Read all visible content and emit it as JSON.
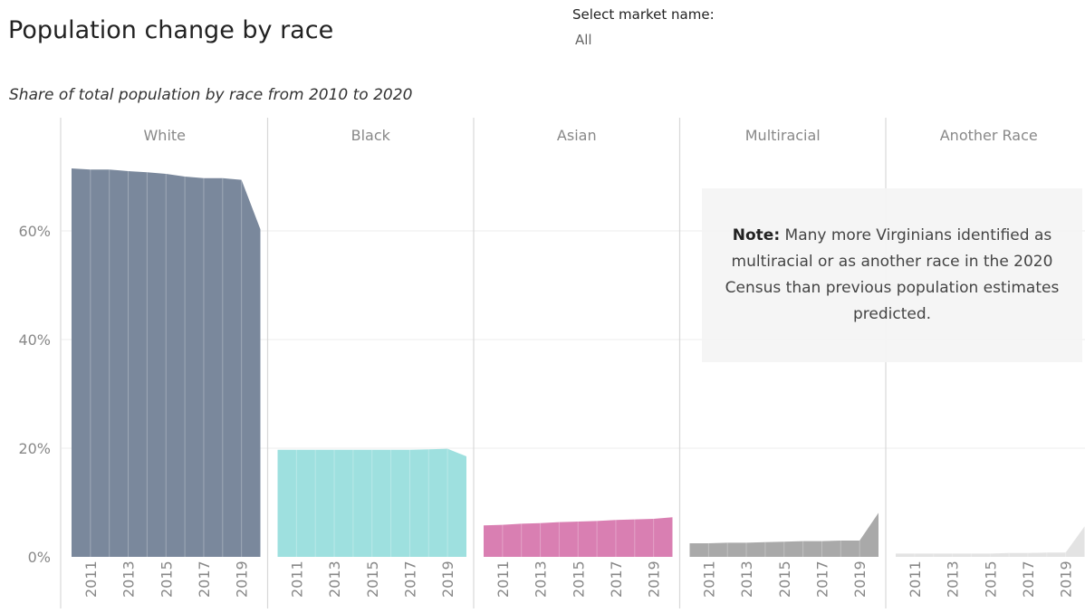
{
  "header": {
    "title": "Population change by race",
    "filter_label": "Select market name:",
    "filter_value": "All"
  },
  "note": {
    "label": "Note:",
    "text": "Many more Virginians identified as multiracial or as another race in the 2020 Census than previous population estimates predicted."
  },
  "chart_data": {
    "type": "area",
    "title": "Share of total population by race from 2010 to 2020",
    "x": [
      2010,
      2011,
      2012,
      2013,
      2014,
      2015,
      2016,
      2017,
      2018,
      2019,
      2020
    ],
    "x_tick_labels": [
      "2011",
      "2013",
      "2015",
      "2017",
      "2019"
    ],
    "y_tick_labels": [
      "0%",
      "20%",
      "40%",
      "60%"
    ],
    "ylim": [
      0,
      75
    ],
    "grid": true,
    "series": [
      {
        "name": "White",
        "color": "#7a889c",
        "values": [
          71.5,
          71.3,
          71.3,
          71.0,
          70.8,
          70.5,
          70.0,
          69.7,
          69.7,
          69.4,
          60.3
        ]
      },
      {
        "name": "Black",
        "color": "#9ee0df",
        "values": [
          19.7,
          19.7,
          19.7,
          19.7,
          19.7,
          19.7,
          19.7,
          19.7,
          19.8,
          19.9,
          18.5
        ]
      },
      {
        "name": "Asian",
        "color": "#d97fb2",
        "values": [
          5.8,
          5.9,
          6.1,
          6.2,
          6.4,
          6.5,
          6.6,
          6.8,
          6.9,
          7.0,
          7.3
        ]
      },
      {
        "name": "Multiracial",
        "color": "#a9a9a9",
        "values": [
          2.5,
          2.5,
          2.6,
          2.6,
          2.7,
          2.8,
          2.9,
          2.9,
          3.0,
          3.0,
          8.1
        ]
      },
      {
        "name": "Another Race",
        "color": "#e3e3e3",
        "values": [
          0.6,
          0.6,
          0.6,
          0.6,
          0.6,
          0.6,
          0.7,
          0.7,
          0.8,
          0.8,
          5.6
        ]
      }
    ]
  }
}
